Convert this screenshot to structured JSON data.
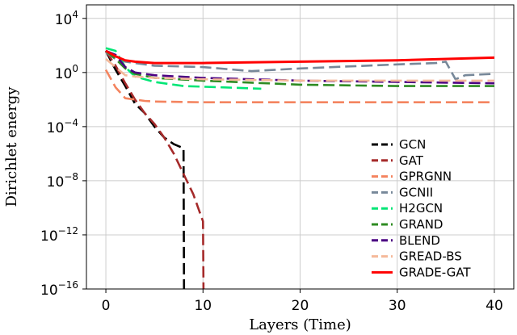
{
  "chart_data": {
    "type": "line",
    "title": "",
    "xlabel": "Layers (Time)",
    "ylabel": "Dirichlet energy",
    "xlim": [
      -2,
      42
    ],
    "ylim_log10": [
      -16,
      5
    ],
    "yscale": "log",
    "x_ticks": [
      "0",
      "10",
      "20",
      "30",
      "40"
    ],
    "y_ticks": [
      {
        "base": "10",
        "exp": "4",
        "log10": 4
      },
      {
        "base": "10",
        "exp": "0",
        "log10": 0
      },
      {
        "base": "10",
        "exp": "−4",
        "log10": -4
      },
      {
        "base": "10",
        "exp": "−8",
        "log10": -8
      },
      {
        "base": "10",
        "exp": "−12",
        "log10": -12
      },
      {
        "base": "10",
        "exp": "−16",
        "log10": -16
      }
    ],
    "grid": true,
    "legend_position": "lower-right",
    "series": [
      {
        "name": "GCN",
        "color": "#000000",
        "dash": "long",
        "x": [
          0,
          1,
          2,
          3,
          4,
          5,
          6,
          7,
          8,
          8.05
        ],
        "log10_y": [
          1.6,
          0.2,
          -1,
          -2.3,
          -3,
          -4,
          -4.8,
          -5.3,
          -5.6,
          -16
        ]
      },
      {
        "name": "GAT",
        "color": "#a52a2a",
        "dash": "long",
        "x": [
          0,
          1,
          2,
          3,
          4,
          5,
          6,
          7,
          8,
          9,
          10,
          10.05
        ],
        "log10_y": [
          1.6,
          0.5,
          -0.8,
          -2,
          -3,
          -3.8,
          -4.8,
          -6,
          -7.5,
          -9,
          -11,
          -16
        ]
      },
      {
        "name": "GPRGNN",
        "color": "#f4845f",
        "dash": "long",
        "x": [
          0,
          1,
          2,
          3,
          4,
          5,
          10,
          20,
          30,
          40
        ],
        "log10_y": [
          0.2,
          -1.1,
          -1.9,
          -2.0,
          -2.1,
          -2.15,
          -2.2,
          -2.2,
          -2.2,
          -2.2
        ]
      },
      {
        "name": "GCNII",
        "color": "#778899",
        "dash": "long",
        "x": [
          0,
          1,
          2,
          3,
          5,
          10,
          15,
          20,
          30,
          34,
          35,
          36,
          37,
          40
        ],
        "log10_y": [
          1.5,
          1.0,
          0.8,
          0.7,
          0.5,
          0.4,
          0.1,
          0.3,
          0.6,
          0.7,
          0.8,
          -0.5,
          -0.2,
          -0.1
        ]
      },
      {
        "name": "H2GCN",
        "color": "#00e676",
        "dash": "long",
        "x": [
          0,
          1,
          2,
          3,
          5,
          8,
          12,
          16
        ],
        "log10_y": [
          1.8,
          1.6,
          0.4,
          -0.3,
          -0.7,
          -1.0,
          -1.1,
          -1.2
        ]
      },
      {
        "name": "GRAND",
        "color": "#2e8b22",
        "dash": "long",
        "x": [
          0,
          1,
          2,
          3,
          5,
          10,
          20,
          30,
          40
        ],
        "log10_y": [
          1.6,
          1.0,
          0.3,
          -0.1,
          -0.4,
          -0.6,
          -0.9,
          -1.0,
          -1.0
        ]
      },
      {
        "name": "BLEND",
        "color": "#4b0082",
        "dash": "long",
        "x": [
          0,
          1,
          2,
          3,
          5,
          10,
          20,
          30,
          40
        ],
        "log10_y": [
          1.6,
          1.3,
          0.4,
          0.0,
          -0.2,
          -0.4,
          -0.6,
          -0.7,
          -0.8
        ]
      },
      {
        "name": "GREAD-BS",
        "color": "#f5b99a",
        "dash": "long",
        "x": [
          0,
          1,
          2,
          3,
          5,
          10,
          20,
          30,
          40
        ],
        "log10_y": [
          1.0,
          0.4,
          -0.2,
          -0.3,
          -0.4,
          -0.5,
          -0.6,
          -0.6,
          -0.6
        ]
      },
      {
        "name": "GRADE-GAT",
        "color": "#ff0000",
        "dash": "solid",
        "x": [
          0,
          1,
          2,
          3,
          5,
          10,
          20,
          30,
          40
        ],
        "log10_y": [
          1.6,
          1.2,
          0.9,
          0.8,
          0.7,
          0.7,
          0.8,
          0.9,
          1.1
        ]
      }
    ]
  }
}
